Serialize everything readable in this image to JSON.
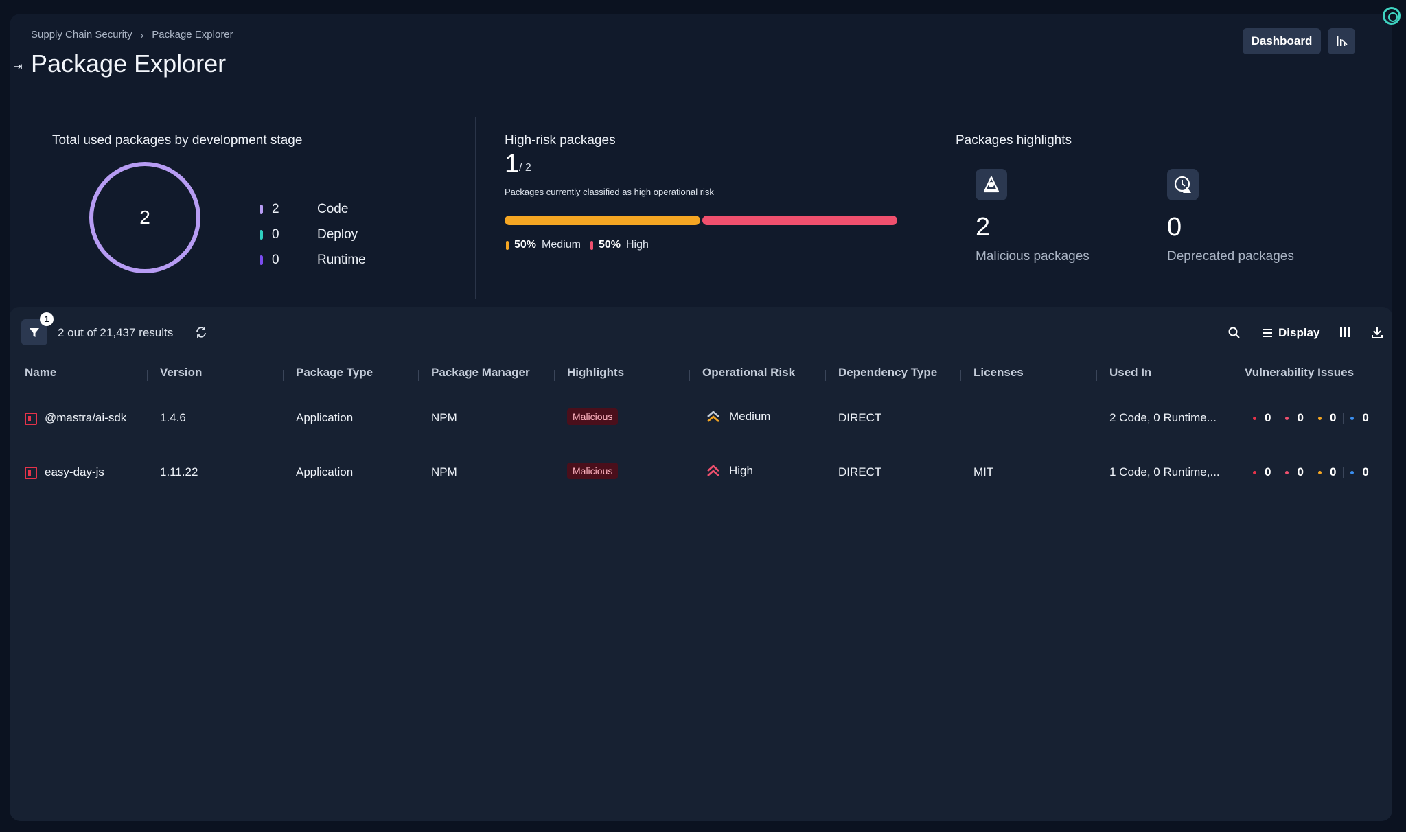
{
  "breadcrumb": {
    "root": "Supply Chain Security",
    "current": "Package Explorer"
  },
  "header": {
    "title": "Package Explorer",
    "dashboard_label": "Dashboard"
  },
  "summary": {
    "stages": {
      "title": "Total used packages by development stage",
      "total": "2",
      "items": [
        {
          "count": "2",
          "label": "Code",
          "color": "#b79cf3"
        },
        {
          "count": "0",
          "label": "Deploy",
          "color": "#2fd0c0"
        },
        {
          "count": "0",
          "label": "Runtime",
          "color": "#7b4cf0"
        }
      ]
    },
    "high_risk": {
      "title": "High-risk packages",
      "count": "1",
      "total": "/ 2",
      "description": "Packages currently classified as high operational risk",
      "medium_pct": "50%",
      "medium_label": "Medium",
      "high_pct": "50%",
      "high_label": "High",
      "medium_fraction": 0.5,
      "high_fraction": 0.5,
      "medium_color": "#f5a623",
      "high_color": "#f0506e"
    },
    "highlights": {
      "title": "Packages highlights",
      "malicious_count": "2",
      "malicious_label": "Malicious packages",
      "deprecated_count": "0",
      "deprecated_label": "Deprecated packages"
    }
  },
  "table": {
    "filter_count": "1",
    "results_text": "2 out of 21,437 results",
    "display_label": "Display",
    "columns": [
      "Name",
      "Version",
      "Package Type",
      "Package Manager",
      "Highlights",
      "Operational Risk",
      "Dependency Type",
      "Licenses",
      "Used In",
      "Vulnerability Issues"
    ],
    "rows": [
      {
        "name": "@mastra/ai-sdk",
        "version": "1.4.6",
        "type": "Application",
        "manager": "NPM",
        "highlight": "Malicious",
        "risk": "Medium",
        "dependency": "DIRECT",
        "license": "",
        "used_in": "2 Code, 0 Runtime...",
        "vulns": [
          "0",
          "0",
          "0",
          "0"
        ]
      },
      {
        "name": "easy-day-js",
        "version": "1.11.22",
        "type": "Application",
        "manager": "NPM",
        "highlight": "Malicious",
        "risk": "High",
        "dependency": "DIRECT",
        "license": "MIT",
        "used_in": "1 Code, 0 Runtime,...",
        "vulns": [
          "0",
          "0",
          "0",
          "0"
        ]
      }
    ],
    "vuln_colors": [
      "#e5334a",
      "#f0506e",
      "#f5a623",
      "#3b8ff0"
    ]
  }
}
